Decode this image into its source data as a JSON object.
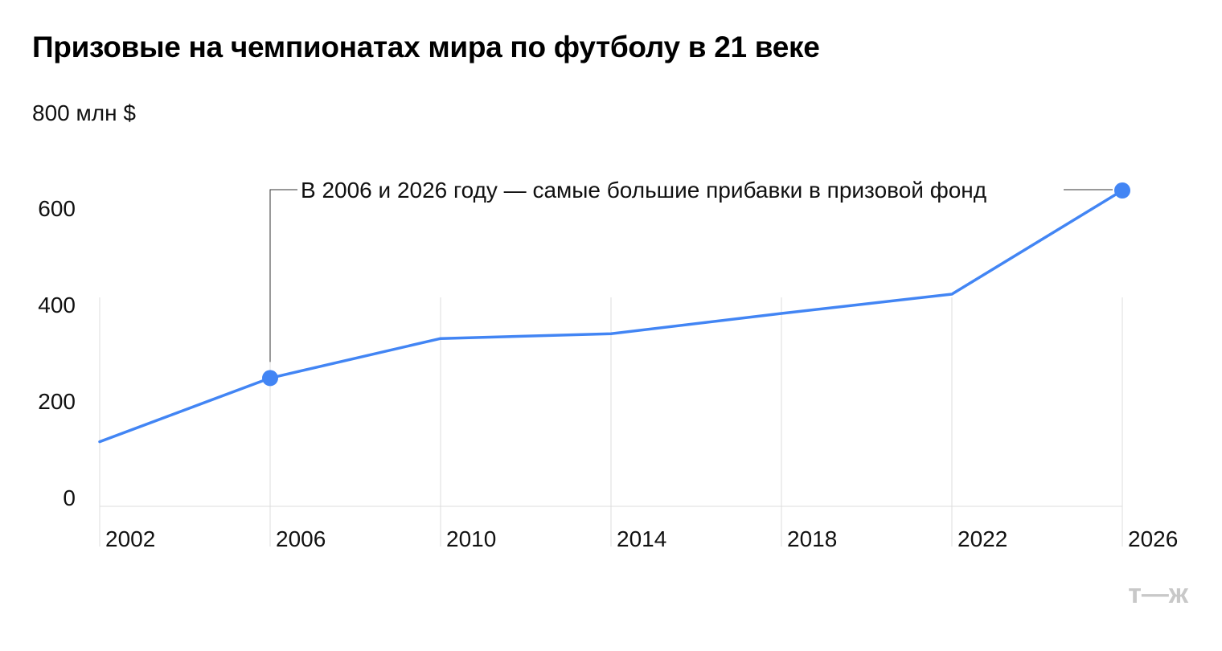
{
  "chart_data": {
    "type": "line",
    "title": "Призовые на чемпионатах мира по футболу в 21 веке",
    "ylabel": "800 млн $",
    "x": [
      2002,
      2006,
      2010,
      2014,
      2018,
      2022,
      2026
    ],
    "x_tick_labels": [
      "2002",
      "2006",
      "2010",
      "2014",
      "2018",
      "2022",
      "2026"
    ],
    "y_ticks": [
      0,
      200,
      400,
      600,
      800
    ],
    "y_tick_labels": [
      "0",
      "200",
      "400",
      "600"
    ],
    "ylim": [
      0,
      800
    ],
    "series": [
      {
        "values": [
          134,
          266,
          348,
          358,
          400,
          440,
          655
        ],
        "highlighted_points": [
          2006,
          2026
        ]
      }
    ],
    "annotation": "В 2006 и 2026 году — самые большие прибавки в призовой фонд",
    "grid": "vertical",
    "line_color": "#4285f4",
    "grid_color": "#dcdcdc"
  },
  "brand": {
    "logo_text": "т—ж"
  }
}
